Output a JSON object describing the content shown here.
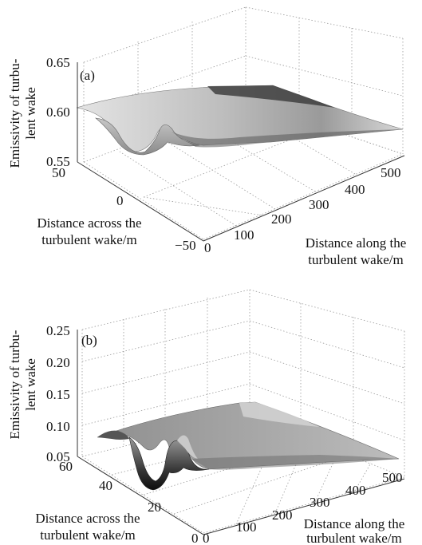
{
  "chart_data": [
    {
      "type": "surface",
      "panel_label": "(a)",
      "zlabel_lines": [
        "Emissivity of turbu-",
        "lent wake"
      ],
      "xlabel_lines": [
        "Distance along the",
        "turbulent wake/m"
      ],
      "ylabel_lines": [
        "Distance across the",
        "turbulent wake/m"
      ],
      "x_ticks": [
        "0",
        "100",
        "200",
        "300",
        "400",
        "500"
      ],
      "y_ticks": [
        "50",
        "0",
        "−50"
      ],
      "z_ticks": [
        "0.65",
        "0.60",
        "0.55"
      ],
      "xlim": [
        0,
        500
      ],
      "ylim": [
        -50,
        50
      ],
      "zlim": [
        0.55,
        0.65
      ],
      "grid": "dotted",
      "surface": {
        "background_level": 0.605,
        "wake_trough_min": 0.565,
        "trough_location_x": 0,
        "trough_location_y": 0
      }
    },
    {
      "type": "surface",
      "panel_label": "(b)",
      "zlabel_lines": [
        "Emissivity of turbu-",
        "lent wake"
      ],
      "xlabel_lines": [
        "Distance along the",
        "turbulent wake/m"
      ],
      "ylabel_lines": [
        "Distance across the",
        "turbulent wake/m"
      ],
      "x_ticks": [
        "0",
        "100",
        "200",
        "300",
        "400",
        "500"
      ],
      "y_ticks": [
        "60",
        "40",
        "20",
        "0"
      ],
      "z_ticks": [
        "0.25",
        "0.20",
        "0.15",
        "0.10",
        "0.05"
      ],
      "xlim": [
        0,
        500
      ],
      "ylim": [
        0,
        60
      ],
      "zlim": [
        0.05,
        0.25
      ],
      "grid": "dotted",
      "surface": {
        "background_level": 0.145,
        "wake_trough_min": 0.06,
        "trough_location_x": 0,
        "trough_location_y": 30
      }
    }
  ]
}
